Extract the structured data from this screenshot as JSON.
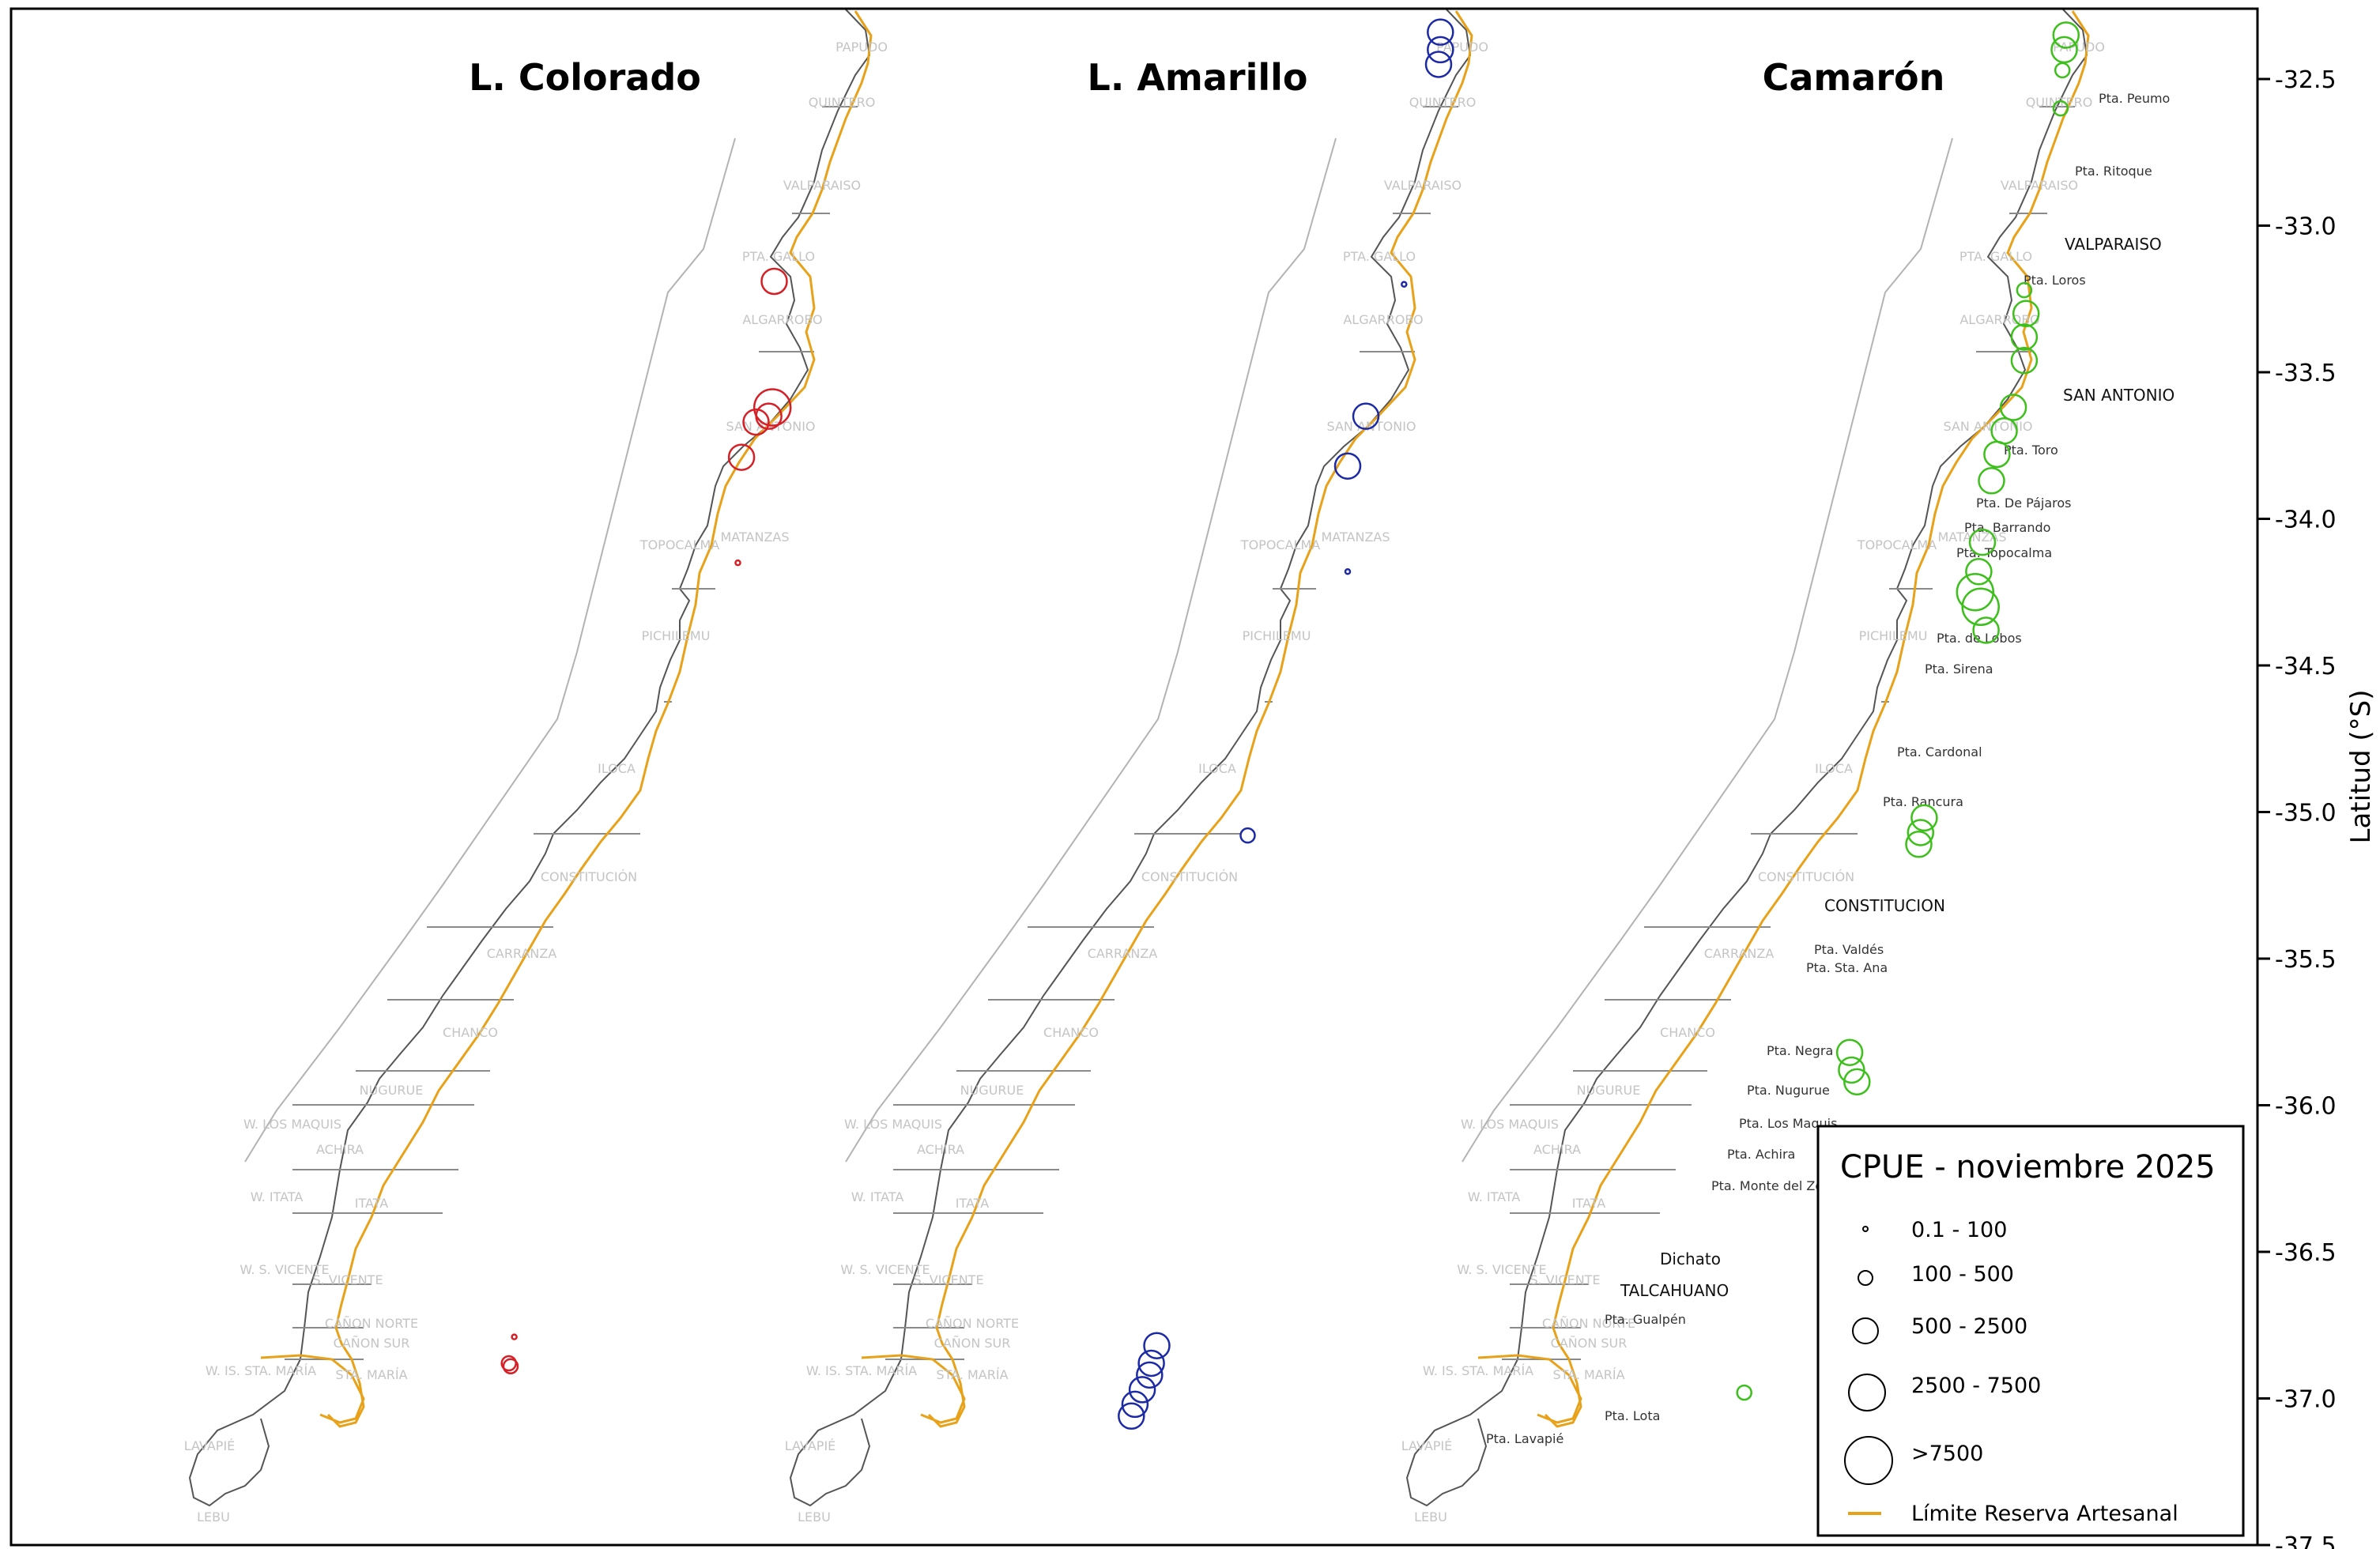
{
  "panels": [
    {
      "title": "L. Colorado",
      "color": "#d62027"
    },
    {
      "title": "L. Amarillo",
      "color": "#1c2aa6"
    },
    {
      "title": "Camarón",
      "color": "#3dbf1c"
    }
  ],
  "axis": {
    "title": "Latitud (°S)",
    "ticks": [
      "-32.5",
      "-33.0",
      "-33.5",
      "-34.0",
      "-34.5",
      "-35.0",
      "-35.5",
      "-36.0",
      "-36.5",
      "-37.0",
      "-37.5"
    ],
    "lat_range": [
      -32.25,
      -37.55
    ]
  },
  "zones": [
    "PAPUDO",
    "QUINTERO",
    "VALPARAISO",
    "PTA. GALLO",
    "ALGARROBO",
    "SAN ANTONIO",
    "MATANZAS",
    "TOPOCALMA",
    "PICHILEMU",
    "ILOCA",
    "CONSTITUCIÓN",
    "CARRANZA",
    "CHANCO",
    "NUGURUE",
    "W. LOS MAQUIS",
    "ACHIRA",
    "W. ITATA",
    "ITATA",
    "W. S. VICENTE",
    "S. VICENTE",
    "CAÑON NORTE",
    "CAÑON SUR",
    "W. IS. STA. MARÍA",
    "STA. MARÍA",
    "LAVAPIÉ",
    "LEBU"
  ],
  "places": [
    "Pta. Peumo",
    "Pta. Ritoque",
    "Pta. Loros",
    "Pta. Toro",
    "Pta. De Pájaros",
    "Pta. Barrando",
    "Pta. Topocalma",
    "Pta. de Lobos",
    "Pta. Sirena",
    "Pta. Cardonal",
    "Pta. Rancura",
    "Pta. Valdés",
    "Pta. Sta. Ana",
    "Pta. Negra",
    "Pta. Nugurue",
    "Pta. Los Maquis",
    "Pta. Achira",
    "Pta. Monte del Zorro",
    "Pta. Gualpén",
    "Pta. Lota",
    "Pta. Lavapié",
    "Dichato"
  ],
  "cities": [
    "VALPARAISO",
    "SAN ANTONIO",
    "CONSTITUCION",
    "TALCAHUANO"
  ],
  "legend": {
    "title": "CPUE - noviembre 2025",
    "classes": [
      {
        "label": "0.1 - 100"
      },
      {
        "label": "100 - 500"
      },
      {
        "label": "500 - 2500"
      },
      {
        "label": "2500 - 7500"
      },
      {
        "label": ">7500"
      }
    ],
    "line_label": "Límite Reserva Artesanal",
    "line_color": "#e8a21a"
  },
  "catches": {
    "L. Colorado": [
      {
        "lat": -33.19,
        "lon": -71.85,
        "cpue_class": 3
      },
      {
        "lat": -33.62,
        "lon": -71.86,
        "cpue_class": 4
      },
      {
        "lat": -33.65,
        "lon": -71.88,
        "cpue_class": 3
      },
      {
        "lat": -33.67,
        "lon": -71.95,
        "cpue_class": 3
      },
      {
        "lat": -33.79,
        "lon": -72.03,
        "cpue_class": 3
      },
      {
        "lat": -34.15,
        "lon": -72.05,
        "cpue_class": 1
      },
      {
        "lat": -36.79,
        "lon": -73.28,
        "cpue_class": 1
      },
      {
        "lat": -36.89,
        "lon": -73.3,
        "cpue_class": 2
      },
      {
        "lat": -36.88,
        "lon": -73.31,
        "cpue_class": 2
      }
    ],
    "L. Amarillo": [
      {
        "lat": -32.34,
        "lon": -71.49,
        "cpue_class": 3
      },
      {
        "lat": -32.4,
        "lon": -71.49,
        "cpue_class": 3
      },
      {
        "lat": -32.45,
        "lon": -71.5,
        "cpue_class": 3
      },
      {
        "lat": -33.2,
        "lon": -71.69,
        "cpue_class": 1
      },
      {
        "lat": -33.65,
        "lon": -71.9,
        "cpue_class": 3
      },
      {
        "lat": -33.82,
        "lon": -72.0,
        "cpue_class": 3
      },
      {
        "lat": -34.18,
        "lon": -72.0,
        "cpue_class": 1
      },
      {
        "lat": -35.08,
        "lon": -72.55,
        "cpue_class": 2
      },
      {
        "lat": -36.82,
        "lon": -73.05,
        "cpue_class": 3
      },
      {
        "lat": -36.88,
        "lon": -73.08,
        "cpue_class": 3
      },
      {
        "lat": -36.92,
        "lon": -73.09,
        "cpue_class": 3
      },
      {
        "lat": -36.97,
        "lon": -73.13,
        "cpue_class": 3
      },
      {
        "lat": -37.02,
        "lon": -73.17,
        "cpue_class": 3
      },
      {
        "lat": -37.06,
        "lon": -73.19,
        "cpue_class": 3
      }
    ],
    "Camarón": [
      {
        "lat": -32.35,
        "lon": -71.44,
        "cpue_class": 3
      },
      {
        "lat": -32.4,
        "lon": -71.45,
        "cpue_class": 3
      },
      {
        "lat": -32.47,
        "lon": -71.46,
        "cpue_class": 2
      },
      {
        "lat": -32.6,
        "lon": -71.47,
        "cpue_class": 2
      },
      {
        "lat": -33.22,
        "lon": -71.67,
        "cpue_class": 2
      },
      {
        "lat": -33.3,
        "lon": -71.66,
        "cpue_class": 3
      },
      {
        "lat": -33.38,
        "lon": -71.67,
        "cpue_class": 3
      },
      {
        "lat": -33.46,
        "lon": -71.67,
        "cpue_class": 3
      },
      {
        "lat": -33.62,
        "lon": -71.73,
        "cpue_class": 3
      },
      {
        "lat": -33.7,
        "lon": -71.78,
        "cpue_class": 3
      },
      {
        "lat": -33.78,
        "lon": -71.82,
        "cpue_class": 3
      },
      {
        "lat": -33.87,
        "lon": -71.85,
        "cpue_class": 3
      },
      {
        "lat": -34.08,
        "lon": -71.9,
        "cpue_class": 3
      },
      {
        "lat": -34.18,
        "lon": -71.92,
        "cpue_class": 3
      },
      {
        "lat": -34.25,
        "lon": -71.94,
        "cpue_class": 4
      },
      {
        "lat": -34.3,
        "lon": -71.91,
        "cpue_class": 4
      },
      {
        "lat": -34.38,
        "lon": -71.88,
        "cpue_class": 3
      },
      {
        "lat": -35.02,
        "lon": -72.22,
        "cpue_class": 3
      },
      {
        "lat": -35.07,
        "lon": -72.24,
        "cpue_class": 3
      },
      {
        "lat": -35.11,
        "lon": -72.25,
        "cpue_class": 3
      },
      {
        "lat": -35.82,
        "lon": -72.63,
        "cpue_class": 3
      },
      {
        "lat": -35.88,
        "lon": -72.62,
        "cpue_class": 3
      },
      {
        "lat": -35.92,
        "lon": -72.59,
        "cpue_class": 3
      },
      {
        "lat": -36.98,
        "lon": -73.21,
        "cpue_class": 2
      }
    ]
  }
}
